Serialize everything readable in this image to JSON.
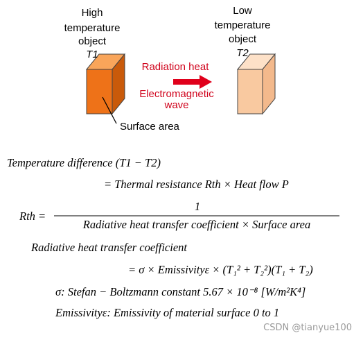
{
  "diagram": {
    "high_object": {
      "lines": [
        "High",
        "temperature",
        "object"
      ],
      "name": "T1"
    },
    "low_object": {
      "lines": [
        "Low",
        "temperature",
        "object"
      ],
      "name": "T2"
    },
    "arrow_label_top": "Radiation heat",
    "arrow_label_bottom": [
      "Electromagnetic",
      "wave"
    ],
    "surface_label": "Surface area"
  },
  "formulas": {
    "line1": "Temperature difference (T1 − T2)",
    "line2": "= Thermal resistance Rth × Heat flow P",
    "fraction_lhs": "Rth =",
    "numerator": "1",
    "denominator": "Radiative heat transfer coefficient × Surface area",
    "line4": "Radiative heat transfer coefficient",
    "line5": "= σ × Emissivityε × (T₁² + T₂²)(T₁ + T₂)",
    "line6": "σ: Stefan − Boltzmann constant 5.67 × 10⁻⁸ [W/m²K⁴]",
    "line7": "Emissivityε: Emissivity of material surface 0 to 1"
  },
  "watermark": "CSDN @tianyue100"
}
